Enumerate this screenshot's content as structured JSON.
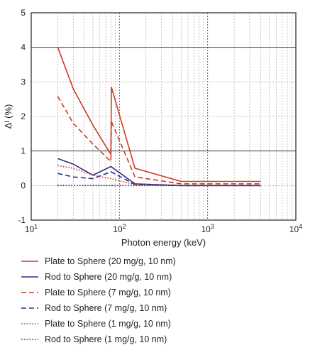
{
  "chart_data": {
    "type": "line",
    "title": "",
    "xlabel": "Photon energy (keV)",
    "ylabel": "Δᴵ (%)",
    "xscale": "log",
    "xlim": [
      10,
      10000
    ],
    "ylim": [
      -1,
      5
    ],
    "grid": true,
    "legend_position": "below",
    "x_ticks": [
      {
        "value": 10,
        "base": "10",
        "exp": "1"
      },
      {
        "value": 100,
        "base": "10",
        "exp": "2"
      },
      {
        "value": 1000,
        "base": "10",
        "exp": "3"
      },
      {
        "value": 10000,
        "base": "10",
        "exp": "4"
      }
    ],
    "y_ticks": [
      "-1",
      "0",
      "1",
      "2",
      "3",
      "4",
      "5"
    ],
    "series": [
      {
        "name": "Plate to Sphere (20 mg/g, 10 nm)",
        "color": "#d0391f",
        "dash": "solid",
        "x": [
          20,
          30,
          50,
          80,
          81,
          150,
          500,
          4000
        ],
        "y": [
          4.0,
          2.8,
          1.75,
          0.9,
          2.85,
          0.5,
          0.12,
          0.12
        ]
      },
      {
        "name": "Rod to Sphere (20 mg/g, 10 nm)",
        "color": "#2b2f8f",
        "dash": "solid",
        "x": [
          20,
          30,
          50,
          80,
          150,
          500,
          4000
        ],
        "y": [
          0.78,
          0.62,
          0.3,
          0.55,
          0.05,
          0.0,
          0.0
        ]
      },
      {
        "name": "Plate to Sphere (7 mg/g, 10 nm)",
        "color": "#d0391f",
        "dash": "dashed",
        "x": [
          20,
          30,
          50,
          80,
          81,
          150,
          500,
          4000
        ],
        "y": [
          2.58,
          1.8,
          1.2,
          0.7,
          1.85,
          0.25,
          0.05,
          0.05
        ]
      },
      {
        "name": "Rod to Sphere (7 mg/g, 10 nm)",
        "color": "#2b2f8f",
        "dash": "dashed",
        "x": [
          20,
          30,
          50,
          80,
          150,
          500,
          4000
        ],
        "y": [
          0.35,
          0.25,
          0.2,
          0.4,
          0.03,
          0.0,
          0.0
        ]
      },
      {
        "name": "Plate to Sphere (1 mg/g, 10 nm)",
        "color": "#d0391f",
        "dash": "dotted",
        "x": [
          20,
          30,
          50,
          80,
          150,
          500,
          4000
        ],
        "y": [
          0.58,
          0.5,
          0.3,
          0.2,
          0.03,
          0.0,
          0.0
        ]
      },
      {
        "name": "Rod to Sphere (1 mg/g, 10 nm)",
        "color": "#2b2f8f",
        "dash": "dotted",
        "x": [
          20,
          30,
          50,
          80,
          150,
          500,
          4000
        ],
        "y": [
          0.0,
          0.0,
          0.0,
          0.0,
          0.0,
          0.0,
          0.0
        ]
      }
    ]
  }
}
